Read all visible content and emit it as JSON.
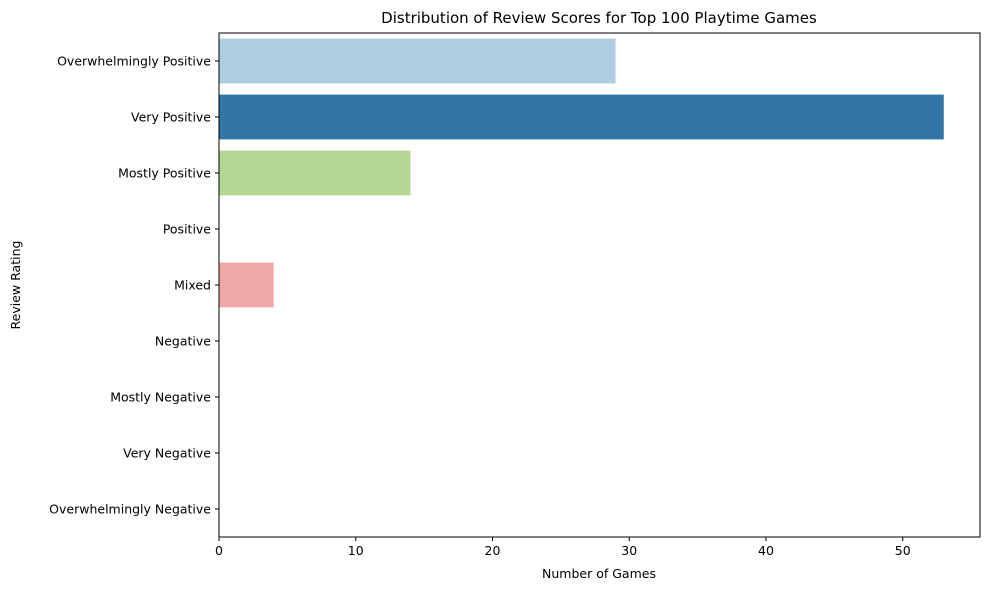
{
  "chart_data": {
    "type": "bar",
    "orientation": "horizontal",
    "title": "Distribution of Review Scores for Top 100 Playtime Games",
    "xlabel": "Number of Games",
    "ylabel": "Review Rating",
    "categories": [
      "Overwhelmingly Positive",
      "Very Positive",
      "Mostly Positive",
      "Positive",
      "Mixed",
      "Negative",
      "Mostly Negative",
      "Very Negative",
      "Overwhelmingly Negative"
    ],
    "values": [
      29,
      53,
      14,
      0,
      4,
      0,
      0,
      0,
      0
    ],
    "colors": [
      "#aecde0",
      "#3176a6",
      "#b4d794",
      "#33a02c",
      "#f0a8a7",
      "#e31a1c",
      "#fdbf6f",
      "#ff7f00",
      "#cab2d6"
    ],
    "xlim": [
      0,
      55.65
    ],
    "xticks": [
      0,
      10,
      20,
      30,
      40,
      50
    ],
    "grid": false,
    "legend": "none"
  }
}
